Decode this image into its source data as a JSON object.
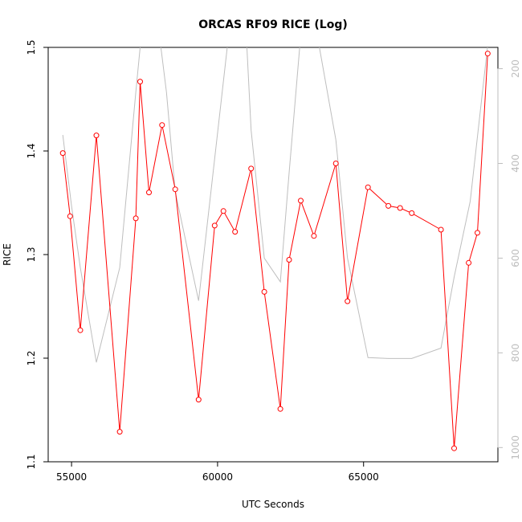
{
  "chart_data": {
    "type": "line",
    "title": "ORCAS RF09 RICE (Log)",
    "xlabel": "UTC Seconds",
    "ylabel": "RICE",
    "xlim": [
      54200,
      69600
    ],
    "ylim": [
      1.1,
      1.5
    ],
    "xticks": [
      55000,
      60000,
      65000
    ],
    "xtick_labels": [
      "55000",
      "60000",
      "65000"
    ],
    "yticks": [
      1.1,
      1.2,
      1.3,
      1.4,
      1.5
    ],
    "ytick_labels": [
      "1.1",
      "1.2",
      "1.3",
      "1.4",
      "1.5"
    ],
    "y2lim": [
      1030,
      155
    ],
    "y2ticks": [
      200,
      400,
      600,
      800,
      1000
    ],
    "y2tick_labels": [
      "200",
      "400",
      "600",
      "800",
      "1000"
    ],
    "grid": false,
    "series": [
      {
        "color": "#ff0000",
        "axis": "left",
        "markers": true,
        "x": [
          54700,
          54950,
          55300,
          55850,
          56650,
          57200,
          57350,
          57650,
          58100,
          58550,
          59350,
          59900,
          60200,
          60600,
          61150,
          61600,
          62150,
          62450,
          62850,
          63300,
          64050,
          64450,
          65150,
          65850,
          66250,
          66650,
          67650,
          68100,
          68600,
          68900,
          69250
        ],
        "y": [
          1.398,
          1.337,
          1.227,
          1.415,
          1.129,
          1.335,
          1.467,
          1.36,
          1.425,
          1.363,
          1.16,
          1.328,
          1.342,
          1.322,
          1.383,
          1.264,
          1.151,
          1.295,
          1.352,
          1.318,
          1.388,
          1.255,
          1.365,
          1.347,
          1.345,
          1.34,
          1.324,
          1.113,
          1.292,
          1.321,
          1.494
        ]
      },
      {
        "color": "#bebebe",
        "axis": "right",
        "markers": false,
        "x": [
          54700,
          55000,
          55300,
          55850,
          56650,
          57200,
          57450,
          57650,
          58050,
          58250,
          58550,
          59350,
          59900,
          60450,
          60650,
          61000,
          61150,
          61600,
          62150,
          62450,
          62900,
          63300,
          64050,
          64450,
          65150,
          65850,
          66650,
          67650,
          68100,
          68650,
          69250
        ],
        "y": [
          340,
          490,
          620,
          820,
          620,
          250,
          90,
          90,
          150,
          250,
          460,
          690,
          390,
          90,
          90,
          150,
          330,
          600,
          650,
          420,
          90,
          90,
          350,
          600,
          810,
          812,
          812,
          790,
          640,
          480,
          150
        ]
      }
    ]
  }
}
